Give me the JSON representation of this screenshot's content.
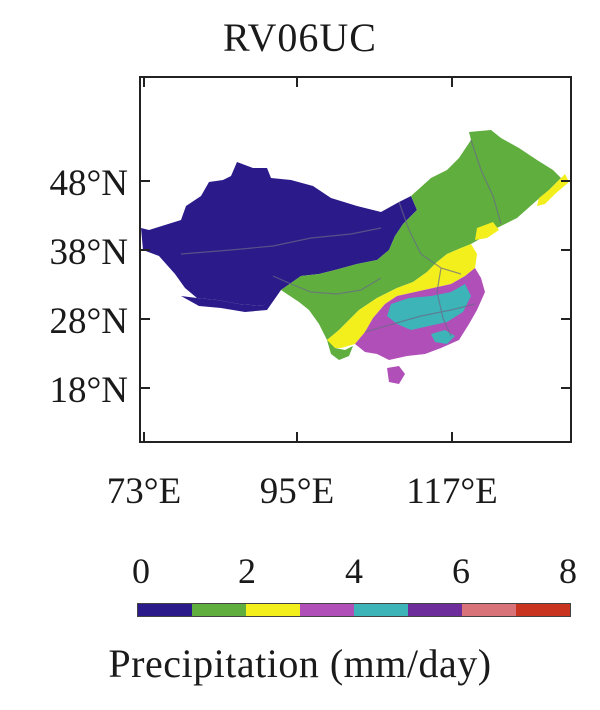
{
  "map": {
    "title": "RV06UC",
    "lat_labels": [
      "48°N",
      "38°N",
      "28°N",
      "18°N"
    ],
    "lon_labels": [
      "73°E",
      "95°E",
      "117°E"
    ],
    "region": "China",
    "lon_range": [
      72,
      135
    ],
    "lat_range": [
      10,
      57
    ]
  },
  "colorbar": {
    "tick_labels": [
      "0",
      "2",
      "4",
      "6",
      "8"
    ],
    "label": "Precipitation (mm/day)",
    "colors": [
      "#2b1a8a",
      "#5fae3e",
      "#f2ef1c",
      "#b04fb8",
      "#3cb4b8",
      "#6d2e9c",
      "#d9737a",
      "#c8341f"
    ]
  },
  "legend_levels": [
    {
      "range": "0-1",
      "color": "#2b1a8a"
    },
    {
      "range": "1-2",
      "color": "#5fae3e"
    },
    {
      "range": "2-3",
      "color": "#f2ef1c"
    },
    {
      "range": "3-4",
      "color": "#b04fb8"
    },
    {
      "range": "4-5",
      "color": "#3cb4b8"
    },
    {
      "range": "5-6",
      "color": "#6d2e9c"
    },
    {
      "range": "6-7",
      "color": "#d9737a"
    },
    {
      "range": "7-8",
      "color": "#c8341f"
    }
  ]
}
